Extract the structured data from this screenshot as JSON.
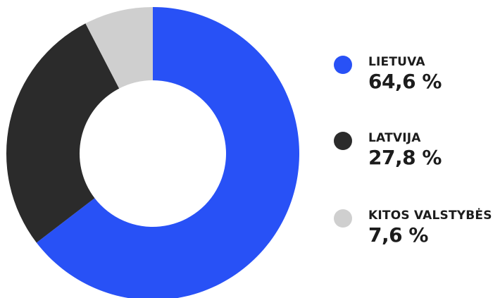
{
  "chart_data": {
    "type": "pie",
    "title": "",
    "legend_position": "right",
    "slices": [
      {
        "label": "LIETUVA",
        "value": 64.6,
        "display": "64,6 %",
        "color": "#2851f6"
      },
      {
        "label": "LATVIJA",
        "value": 27.8,
        "display": "27,8 %",
        "color": "#2b2b2b"
      },
      {
        "label": "KITOS VALSTYBĖS",
        "value": 7.6,
        "display": "7,6 %",
        "color": "#cfcfcf"
      }
    ]
  }
}
